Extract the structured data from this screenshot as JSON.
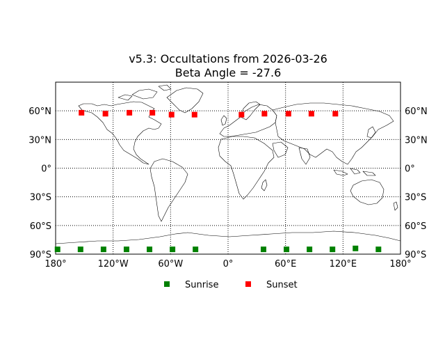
{
  "title_line1": "v5.3: Occultations from 2026-03-26",
  "title_line2": "Beta Angle = -27.6",
  "lat_ticks": [
    {
      "value": 60,
      "label": "60°N"
    },
    {
      "value": 30,
      "label": "30°N"
    },
    {
      "value": 0,
      "label": "0°"
    },
    {
      "value": -30,
      "label": "30°S"
    },
    {
      "value": -60,
      "label": "60°S"
    },
    {
      "value": -90,
      "label": "90°S"
    }
  ],
  "lon_ticks": [
    {
      "value": -180,
      "label": "180°"
    },
    {
      "value": -120,
      "label": "120°W"
    },
    {
      "value": -60,
      "label": "60°W"
    },
    {
      "value": 0,
      "label": "0°"
    },
    {
      "value": 60,
      "label": "60°E"
    },
    {
      "value": 120,
      "label": "120°E"
    },
    {
      "value": 180,
      "label": "180°"
    }
  ],
  "legend": [
    {
      "label": "Sunrise",
      "color": "#008000"
    },
    {
      "label": "Sunset",
      "color": "#ff0000"
    }
  ],
  "chart_data": {
    "type": "scatter",
    "xlim": [
      -180,
      180
    ],
    "ylim": [
      -90,
      90
    ],
    "grid": true,
    "legend_position": "bottom-center",
    "series": [
      {
        "name": "Sunrise",
        "color": "#008000",
        "marker": "square",
        "points": [
          [
            -178,
            -85
          ],
          [
            -154,
            -85
          ],
          [
            -130,
            -85
          ],
          [
            -106,
            -85
          ],
          [
            -82,
            -85
          ],
          [
            -58,
            -85
          ],
          [
            -34,
            -85
          ],
          [
            37,
            -85
          ],
          [
            61,
            -85
          ],
          [
            85,
            -85
          ],
          [
            109,
            -85
          ],
          [
            133,
            -84
          ],
          [
            157,
            -85
          ]
        ]
      },
      {
        "name": "Sunset",
        "color": "#ff0000",
        "marker": "square",
        "points": [
          [
            -153,
            58
          ],
          [
            -128,
            57
          ],
          [
            -103,
            58
          ],
          [
            -79,
            58
          ],
          [
            -59,
            56
          ],
          [
            -35,
            56
          ],
          [
            14,
            56
          ],
          [
            38,
            57
          ],
          [
            63,
            57
          ],
          [
            87,
            57
          ],
          [
            112,
            57
          ]
        ]
      }
    ]
  }
}
